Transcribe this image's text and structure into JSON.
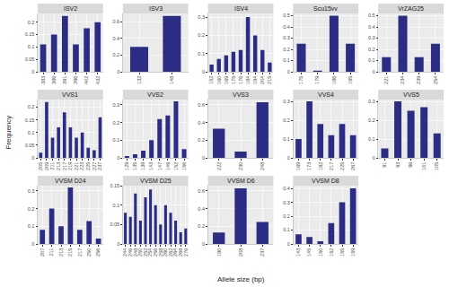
{
  "x_label": "Allele size (bp)",
  "y_label": "Frequency",
  "chart_data": [
    {
      "type": "bar",
      "title": "ISV2",
      "categories": [
        "383",
        "386",
        "391",
        "396",
        "402",
        "432"
      ],
      "values": [
        0.11,
        0.15,
        0.225,
        0.11,
        0.175,
        0.2
      ],
      "color": "#2b2d84",
      "ylim": [
        0,
        0.235
      ],
      "yticks": [
        0,
        0.05,
        0.1,
        0.15,
        0.2
      ],
      "grid": true
    },
    {
      "type": "bar",
      "title": "ISV3",
      "categories": [
        "132",
        "148"
      ],
      "values": [
        0.3,
        0.67
      ],
      "color": "#2b2d84",
      "ylim": [
        0,
        0.7
      ],
      "yticks": [
        0,
        0.2,
        0.4,
        0.6
      ],
      "grid": true
    },
    {
      "type": "bar",
      "title": "ISV4",
      "categories": [
        "152",
        "160",
        "169",
        "175",
        "176",
        "184",
        "194",
        "204",
        "215"
      ],
      "values": [
        0.04,
        0.07,
        0.09,
        0.11,
        0.12,
        0.3,
        0.2,
        0.12,
        0.05
      ],
      "color": "#2b2d84",
      "ylim": [
        0,
        0.32
      ],
      "yticks": [
        0,
        0.1,
        0.2,
        0.3
      ],
      "grid": true
    },
    {
      "type": "bar",
      "title": "Scu15vv",
      "categories": [
        "175",
        "179",
        "186",
        "195"
      ],
      "values": [
        0.25,
        0.01,
        0.5,
        0.25
      ],
      "color": "#2b2d84",
      "ylim": [
        0,
        0.52
      ],
      "yticks": [
        0,
        0.1,
        0.2,
        0.3,
        0.4,
        0.5
      ],
      "grid": true
    },
    {
      "type": "bar",
      "title": "VrZAG25",
      "categories": [
        "221",
        "234",
        "239",
        "254"
      ],
      "values": [
        0.13,
        0.5,
        0.13,
        0.25
      ],
      "color": "#2b2d84",
      "ylim": [
        0,
        0.52
      ],
      "yticks": [
        0,
        0.1,
        0.2,
        0.3,
        0.4,
        0.5
      ],
      "grid": true
    },
    {
      "type": "bar",
      "title": "VVS1",
      "categories": [
        "205",
        "209",
        "211",
        "213",
        "217",
        "219",
        "221",
        "223",
        "225",
        "227",
        "237"
      ],
      "values": [
        0.02,
        0.22,
        0.08,
        0.12,
        0.18,
        0.12,
        0.08,
        0.1,
        0.04,
        0.03,
        0.16
      ],
      "color": "#2b2d84",
      "ylim": [
        0,
        0.23
      ],
      "yticks": [
        0,
        0.05,
        0.1,
        0.15,
        0.2
      ],
      "grid": true
    },
    {
      "type": "bar",
      "title": "VVS2",
      "categories": [
        "129",
        "135",
        "139",
        "143",
        "147",
        "149",
        "152",
        "156"
      ],
      "values": [
        0.01,
        0.02,
        0.04,
        0.1,
        0.22,
        0.24,
        0.32,
        0.05
      ],
      "color": "#2b2d84",
      "ylim": [
        0,
        0.33
      ],
      "yticks": [
        0,
        0.1,
        0.2,
        0.3
      ],
      "grid": true
    },
    {
      "type": "bar",
      "title": "VVS3",
      "categories": [
        "222",
        "230",
        "248"
      ],
      "values": [
        0.33,
        0.07,
        0.63
      ],
      "color": "#2b2d84",
      "ylim": [
        0,
        0.66
      ],
      "yticks": [
        0,
        0.2,
        0.4,
        0.6
      ],
      "grid": true
    },
    {
      "type": "bar",
      "title": "VVS4",
      "categories": [
        "169",
        "173",
        "182",
        "217",
        "225",
        "267"
      ],
      "values": [
        0.1,
        0.3,
        0.18,
        0.12,
        0.18,
        0.12
      ],
      "color": "#2b2d84",
      "ylim": [
        0,
        0.31
      ],
      "yticks": [
        0,
        0.1,
        0.2,
        0.3
      ],
      "grid": true
    },
    {
      "type": "bar",
      "title": "VVS5",
      "categories": [
        "91",
        "93",
        "96",
        "101",
        "105"
      ],
      "values": [
        0.05,
        0.3,
        0.25,
        0.27,
        0.13
      ],
      "color": "#2b2d84",
      "ylim": [
        0,
        0.31
      ],
      "yticks": [
        0,
        0.1,
        0.2,
        0.3
      ],
      "grid": true
    },
    {
      "type": "bar",
      "title": "VVSM D24",
      "categories": [
        "207",
        "211",
        "213",
        "215",
        "217",
        "250",
        "256"
      ],
      "values": [
        0.08,
        0.2,
        0.1,
        0.32,
        0.08,
        0.13,
        0.03
      ],
      "color": "#2b2d84",
      "ylim": [
        0,
        0.33
      ],
      "yticks": [
        0,
        0.1,
        0.2,
        0.3
      ],
      "grid": true
    },
    {
      "type": "bar",
      "title": "VVSM D25",
      "categories": [
        "244",
        "246",
        "248",
        "250",
        "252",
        "254",
        "256",
        "258",
        "260",
        "262",
        "264",
        "268",
        "276"
      ],
      "values": [
        0.08,
        0.07,
        0.13,
        0.06,
        0.12,
        0.14,
        0.1,
        0.05,
        0.1,
        0.08,
        0.06,
        0.03,
        0.04
      ],
      "color": "#2b2d84",
      "ylim": [
        0,
        0.15
      ],
      "yticks": [
        0,
        0.05,
        0.1,
        0.15
      ],
      "grid": true
    },
    {
      "type": "bar",
      "title": "VVSM D6",
      "categories": [
        "190",
        "208",
        "237"
      ],
      "values": [
        0.13,
        0.63,
        0.25
      ],
      "color": "#2b2d84",
      "ylim": [
        0,
        0.66
      ],
      "yticks": [
        0,
        0.2,
        0.4,
        0.6
      ],
      "grid": true
    },
    {
      "type": "bar",
      "title": "VVSM D8",
      "categories": [
        "143",
        "145",
        "150",
        "152",
        "155",
        "159"
      ],
      "values": [
        0.07,
        0.05,
        0.02,
        0.15,
        0.3,
        0.4
      ],
      "color": "#2b2d84",
      "ylim": [
        0,
        0.42
      ],
      "yticks": [
        0,
        0.1,
        0.2,
        0.3,
        0.4
      ],
      "grid": true
    }
  ]
}
